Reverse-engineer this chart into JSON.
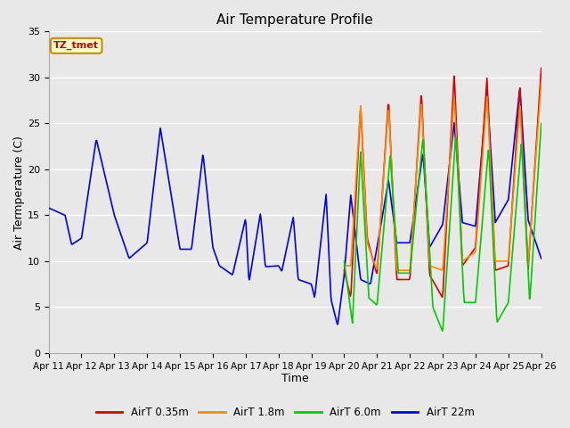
{
  "title": "Air Temperature Profile",
  "xlabel": "Time",
  "ylabel": "Air Termperature (C)",
  "ylim": [
    0,
    35
  ],
  "background_color": "#e8e8e8",
  "plot_bg_color": "#e8e8e8",
  "annotation_text": "TZ_tmet",
  "annotation_bg": "#ffffcc",
  "annotation_border": "#cc8800",
  "annotation_text_color": "#cc0000",
  "series_colors": {
    "AirT 0.35m": "#dd0000",
    "AirT 1.8m": "#ff8800",
    "AirT 6.0m": "#00cc00",
    "AirT 22m": "#0000ee"
  },
  "legend_labels": [
    "AirT 0.35m",
    "AirT 1.8m",
    "AirT 6.0m",
    "AirT 22m"
  ],
  "x_tick_labels": [
    "Apr 11",
    "Apr 12",
    "Apr 13",
    "Apr 14",
    "Apr 15",
    "Apr 16",
    "Apr 17",
    "Apr 18",
    "Apr 19",
    "Apr 20",
    "Apr 21",
    "Apr 22",
    "Apr 23",
    "Apr 24",
    "Apr 25",
    "Apr 26"
  ],
  "grid_color": "#ffffff",
  "line_width": 1.2,
  "figsize": [
    6.4,
    4.8
  ],
  "dpi": 100
}
